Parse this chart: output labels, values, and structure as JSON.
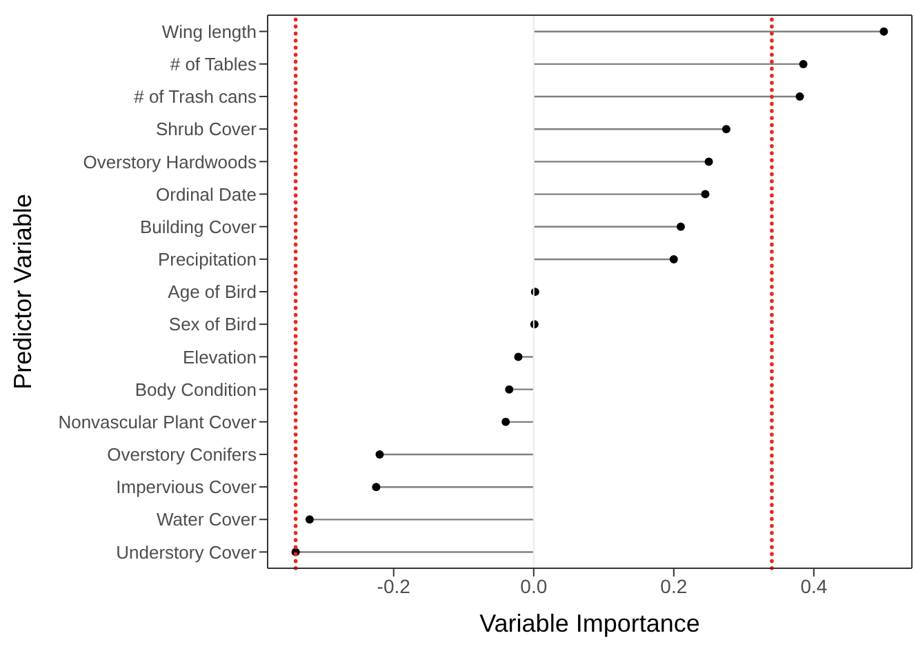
{
  "chart_data": {
    "type": "lollipop",
    "orientation": "horizontal",
    "xlabel": "Variable Importance",
    "ylabel": "Predictor Variable",
    "categories": [
      "Wing length",
      "# of Tables",
      "# of Trash cans",
      "Shrub Cover",
      "Overstory Hardwoods",
      "Ordinal Date",
      "Building Cover",
      "Precipitation",
      "Age of Bird",
      "Sex of Bird",
      "Elevation",
      "Body Condition",
      "Nonvascular Plant Cover",
      "Overstory Conifers",
      "Impervious Cover",
      "Water Cover",
      "Understory Cover"
    ],
    "series": [
      {
        "color": "#000000",
        "values": [
          0.5,
          0.385,
          0.38,
          0.275,
          0.25,
          0.245,
          0.21,
          0.2,
          0.002,
          0.001,
          -0.022,
          -0.035,
          -0.04,
          -0.22,
          -0.225,
          -0.32,
          -0.34
        ]
      }
    ],
    "xlim": [
      -0.38,
      0.54
    ],
    "xticks": [
      -0.2,
      {
        "value": 0,
        "label": "0.0"
      },
      0.2,
      0.4
    ],
    "ref_lines": [
      {
        "axis": "x",
        "value": 0,
        "color": "#ebebeb",
        "line_style": "solid"
      },
      {
        "axis": "x",
        "value": -0.34,
        "color": "#e8281e",
        "line_style": "dotted"
      },
      {
        "axis": "x",
        "value": 0.34,
        "color": "#e8281e",
        "line_style": "dotted"
      }
    ],
    "marker": "circle",
    "grid": false,
    "legend": false
  }
}
